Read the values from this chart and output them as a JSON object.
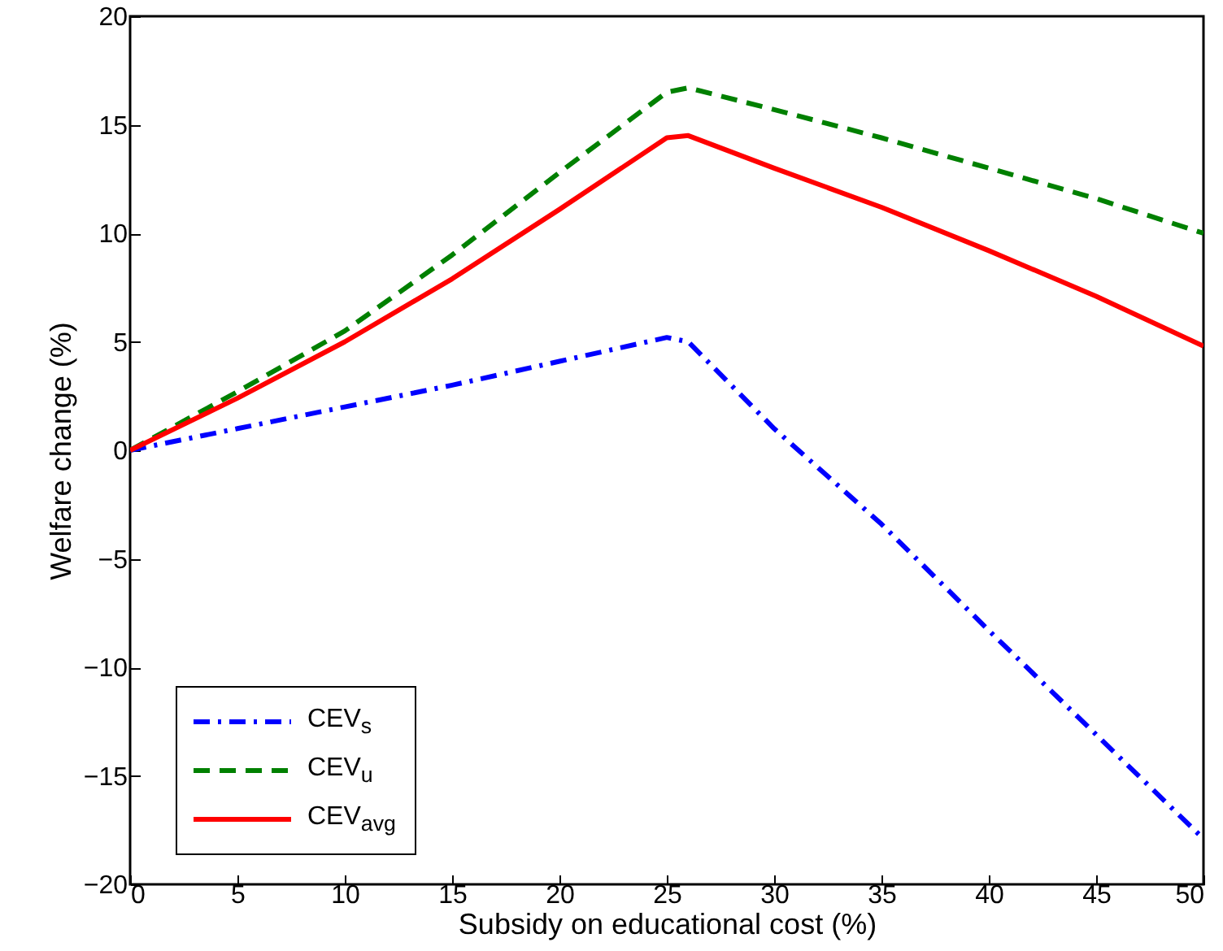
{
  "chart_data": {
    "type": "line",
    "xlabel": "Subsidy on educational cost (%)",
    "ylabel": "Welfare change (%)",
    "x": [
      0,
      5,
      10,
      15,
      20,
      25,
      26,
      30,
      35,
      40,
      45,
      50
    ],
    "series": [
      {
        "name": "CEV$_{s}$",
        "color": "#0000ff",
        "line_style": "dashdot",
        "values": [
          0,
          1.0,
          2.0,
          3.0,
          4.1,
          5.2,
          5.0,
          1.0,
          -3.4,
          -8.3,
          -13.1,
          -17.9
        ]
      },
      {
        "name": "CEV$_{u}$",
        "color": "#008000",
        "line_style": "dashed",
        "values": [
          0,
          2.7,
          5.5,
          9.0,
          12.8,
          16.5,
          16.7,
          15.7,
          14.4,
          13.0,
          11.6,
          10.0
        ]
      },
      {
        "name": "CEV$_{avg}$",
        "color": "#ff0000",
        "line_style": "solid",
        "values": [
          0,
          2.4,
          5.0,
          7.9,
          11.1,
          14.4,
          14.5,
          13.0,
          11.2,
          9.2,
          7.1,
          4.8
        ]
      }
    ],
    "xlim": [
      0,
      50
    ],
    "xticks": [
      0,
      5,
      10,
      15,
      20,
      25,
      30,
      35,
      40,
      45,
      50
    ],
    "ylim": [
      -20,
      20
    ],
    "yticks": [
      -20,
      -15,
      -10,
      -5,
      0,
      5,
      10,
      15,
      20
    ],
    "grid": false,
    "legend": "bottom left",
    "marker": "none"
  }
}
